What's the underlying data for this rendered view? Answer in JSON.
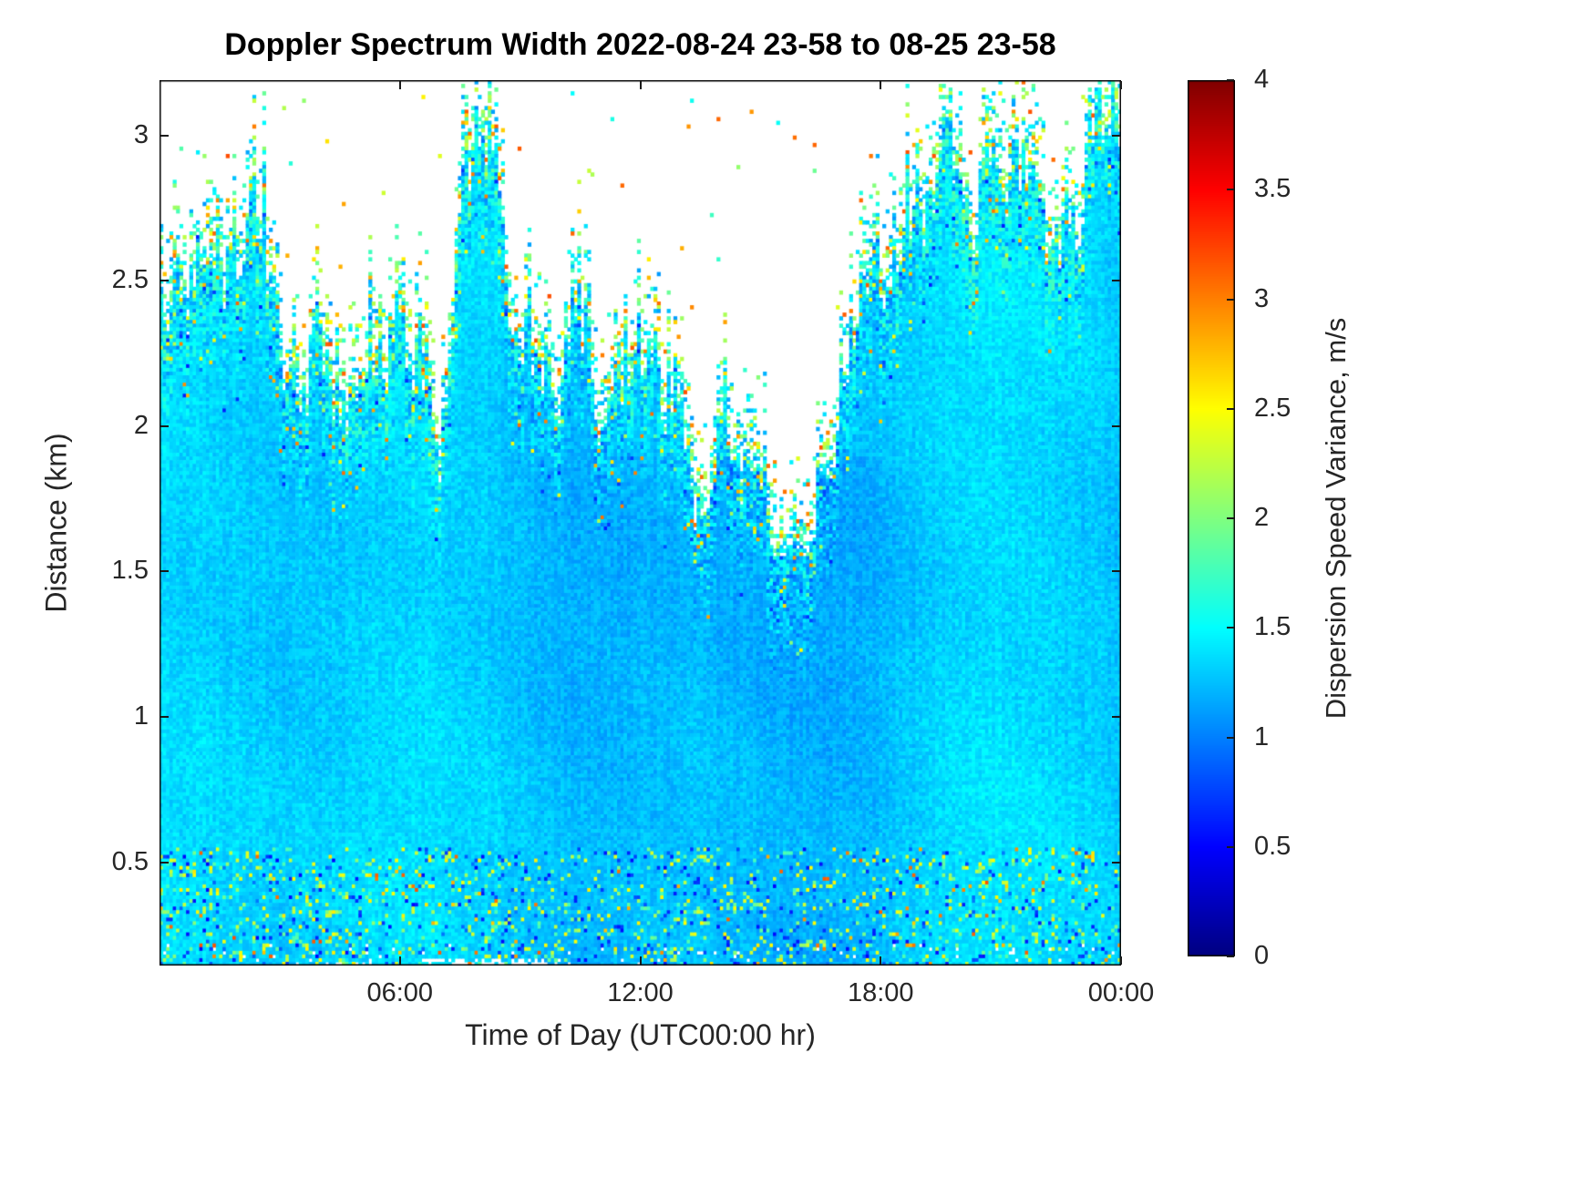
{
  "title": "Doppler Spectrum Width 2022-08-24 23-58 to 08-25 23-58",
  "axes": {
    "xlabel": "Time of Day (UTC00:00 hr)",
    "ylabel": "Distance (km)",
    "x_range_hours": [
      0,
      24
    ],
    "x_ticks": [
      {
        "hour": 6,
        "label": "06:00"
      },
      {
        "hour": 12,
        "label": "12:00"
      },
      {
        "hour": 18,
        "label": "18:00"
      },
      {
        "hour": 24,
        "label": "00:00"
      }
    ],
    "y_range_km": [
      0.145,
      3.19
    ],
    "y_ticks": [
      {
        "km": 0.5,
        "label": "0.5"
      },
      {
        "km": 1,
        "label": "1"
      },
      {
        "km": 1.5,
        "label": "1.5"
      },
      {
        "km": 2,
        "label": "2"
      },
      {
        "km": 2.5,
        "label": "2.5"
      },
      {
        "km": 3,
        "label": "3"
      }
    ]
  },
  "colorbar": {
    "label": "Dispersion Speed Variance, m/s",
    "min": 0,
    "max": 4,
    "colormap": "jet",
    "ticks": [
      {
        "v": 0,
        "label": "0"
      },
      {
        "v": 0.5,
        "label": "0.5"
      },
      {
        "v": 1,
        "label": "1"
      },
      {
        "v": 1.5,
        "label": "1.5"
      },
      {
        "v": 2,
        "label": "2"
      },
      {
        "v": 2.5,
        "label": "2.5"
      },
      {
        "v": 3,
        "label": "3"
      },
      {
        "v": 3.5,
        "label": "3.5"
      },
      {
        "v": 4,
        "label": "4"
      }
    ]
  },
  "chart_data": {
    "type": "heatmap",
    "title": "Doppler Spectrum Width 2022-08-24 23-58 to 08-25 23-58",
    "xlabel": "Time of Day (UTC00:00 hr)",
    "ylabel": "Distance (km)",
    "x_unit": "hours UTC, 2022-08-24 23:58 to 2022-08-25 23:58",
    "x_range": [
      0,
      24
    ],
    "x_tick_hours": [
      6,
      12,
      18,
      24
    ],
    "x_tick_labels": [
      "06:00",
      "12:00",
      "18:00",
      "00:00"
    ],
    "y_unit": "km",
    "y_range": [
      0.145,
      3.19
    ],
    "y_ticks": [
      0.5,
      1,
      1.5,
      2,
      2.5,
      3
    ],
    "z_label": "Dispersion Speed Variance, m/s",
    "z_range": [
      0,
      4
    ],
    "z_ticks": [
      0,
      0.5,
      1,
      1.5,
      2,
      2.5,
      3,
      3.5,
      4
    ],
    "colormap": "jet",
    "background": "white above echo top (no signal)",
    "summary": {
      "interior_typical_ms": 1.35,
      "interior_range_ms": [
        1.0,
        1.7
      ],
      "boundary_speckle_ms": [
        1.8,
        3.2
      ],
      "near_surface_speckle_ms": [
        0.4,
        3.0
      ],
      "description": "Time-height heatmap of radar Doppler spectrum width. Below a fluctuating echo-top boundary the field is mostly cyan (~1.2-1.6 m/s) with fine speckle noise; the boundary zone and lowest ~0.5 km show mixed green/yellow/orange speckles; isolated colored outliers appear above the echo top. Echo top is high (~2.6-2.9 km) near 00:00-02:00, dips to ~2.2 km around 04:00-07:00 with a notch to ~1.95 km near 07:00, spikes to ~2.9 km near 08:00, slowly descends to a minimum ~1.8 km near 15:30, then rises steadily to ~3.0 km by 21:00-24:00."
    },
    "cloud_top_envelope_km": {
      "hours_step": 0.5,
      "hours_start": 0,
      "top_km": [
        2.6,
        2.65,
        2.7,
        2.85,
        2.6,
        2.45,
        2.4,
        2.3,
        2.25,
        2.2,
        2.25,
        2.2,
        2.25,
        2.2,
        1.95,
        2.4,
        2.9,
        2.7,
        2.55,
        2.45,
        2.4,
        2.35,
        2.3,
        2.25,
        2.2,
        2.15,
        2.05,
        2.0,
        1.95,
        1.9,
        1.85,
        1.8,
        1.9,
        2.0,
        2.3,
        2.5,
        2.55,
        2.6,
        2.7,
        2.6,
        2.75,
        2.9,
        3.0,
        2.85,
        2.7,
        2.55,
        2.6,
        2.9,
        3.0
      ]
    }
  },
  "render": {
    "seed": 1337,
    "cols": 290,
    "rows": 240,
    "base_value_ms": 1.3,
    "noise_amp_ms": 0.22,
    "boundary_band_km": 0.35,
    "boundary_inner_km": 0.45,
    "surface_band_km": 0.55,
    "outlier_prob": 0.004
  }
}
